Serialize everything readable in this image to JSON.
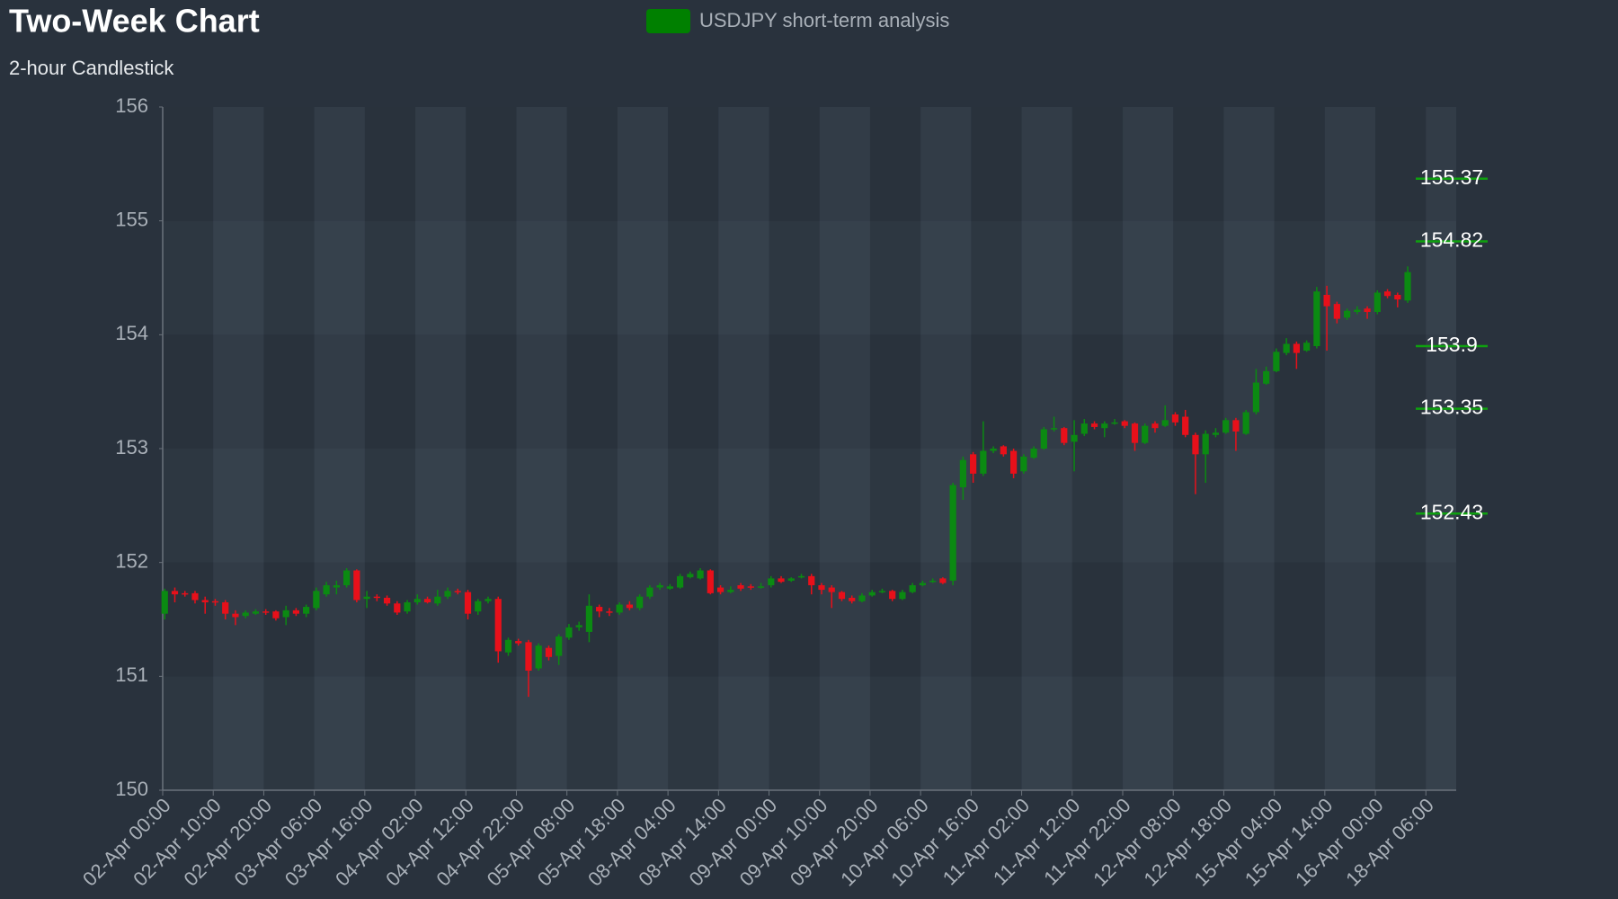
{
  "chart_data": {
    "type": "candlestick",
    "title": "Two-Week Chart",
    "subtitle": "2-hour Candlestick",
    "categories": [
      "02-Apr 00:00",
      null,
      null,
      null,
      null,
      "02-Apr 10:00",
      null,
      null,
      null,
      null,
      "02-Apr 20:00",
      null,
      null,
      null,
      null,
      "03-Apr 06:00",
      null,
      null,
      null,
      null,
      "03-Apr 16:00",
      null,
      null,
      null,
      null,
      "04-Apr 02:00",
      null,
      null,
      null,
      null,
      "04-Apr 12:00",
      null,
      null,
      null,
      null,
      "04-Apr 22:00",
      null,
      null,
      null,
      null,
      "05-Apr 08:00",
      null,
      null,
      null,
      null,
      "05-Apr 18:00",
      null,
      null,
      null,
      null,
      "08-Apr 04:00",
      null,
      null,
      null,
      null,
      "08-Apr 14:00",
      null,
      null,
      null,
      null,
      "09-Apr 00:00",
      null,
      null,
      null,
      null,
      "09-Apr 10:00",
      null,
      null,
      null,
      null,
      "09-Apr 20:00",
      null,
      null,
      null,
      null,
      "10-Apr 06:00",
      null,
      null,
      null,
      null,
      "10-Apr 16:00",
      null,
      null,
      null,
      null,
      "11-Apr 02:00",
      null,
      null,
      null,
      null,
      "11-Apr 12:00",
      null,
      null,
      null,
      null,
      "11-Apr 22:00",
      null,
      null,
      null,
      null,
      "12-Apr 08:00",
      null,
      null,
      null,
      null,
      "12-Apr 18:00",
      null,
      null,
      null,
      null,
      "15-Apr 04:00",
      null,
      null,
      null,
      null,
      "15-Apr 14:00",
      null,
      null,
      null,
      null,
      "16-Apr 00:00",
      null,
      null,
      null,
      null,
      "18-Apr 06:00",
      null,
      null
    ],
    "series": [
      {
        "name": "USDJPY short-term analysis",
        "color": "#008000",
        "up_color": "#0b8a12",
        "down_color": "#e8101a",
        "open": [
          151.55,
          151.75,
          151.73,
          151.73,
          151.67,
          151.66,
          151.65,
          151.55,
          151.53,
          151.55,
          151.57,
          151.57,
          151.52,
          151.58,
          151.55,
          151.6,
          151.72,
          151.78,
          151.8,
          151.93,
          151.68,
          151.7,
          151.69,
          151.64,
          151.57,
          151.65,
          151.68,
          151.64,
          151.7,
          151.75,
          151.74,
          151.57,
          151.66,
          151.68,
          151.21,
          151.31,
          151.3,
          151.07,
          151.25,
          151.18,
          151.34,
          151.43,
          151.39,
          151.61,
          151.57,
          151.56,
          151.63,
          151.6,
          151.7,
          151.78,
          151.77,
          151.78,
          151.87,
          151.86,
          151.93,
          151.78,
          151.74,
          151.8,
          151.79,
          151.78,
          151.8,
          151.86,
          151.84,
          151.87,
          151.88,
          151.8,
          151.78,
          151.74,
          151.69,
          151.66,
          151.71,
          151.74,
          151.75,
          151.68,
          151.74,
          151.8,
          151.83,
          151.86,
          151.84,
          152.66,
          152.95,
          152.78,
          152.98,
          153.02,
          152.98,
          152.8,
          152.92,
          153.0,
          153.17,
          153.18,
          153.06,
          153.13,
          153.22,
          153.18,
          153.22,
          153.24,
          153.22,
          153.05,
          153.22,
          153.2,
          153.3,
          153.28,
          153.12,
          152.95,
          153.12,
          153.14,
          153.25,
          153.13,
          153.32,
          153.57,
          153.68,
          153.84,
          153.92,
          153.86,
          153.9,
          154.35,
          154.27,
          154.15,
          154.2,
          154.23,
          154.2,
          154.38,
          154.35,
          154.3,
          null,
          null,
          null,
          null
        ],
        "high": [
          151.77,
          151.78,
          151.75,
          151.75,
          151.7,
          151.68,
          151.67,
          151.58,
          151.58,
          151.59,
          151.59,
          151.58,
          151.62,
          151.6,
          151.63,
          151.78,
          151.83,
          151.84,
          151.95,
          151.94,
          151.75,
          151.72,
          151.71,
          151.66,
          151.67,
          151.72,
          151.7,
          151.76,
          151.78,
          151.77,
          151.76,
          151.68,
          151.7,
          151.7,
          151.34,
          151.33,
          151.32,
          151.29,
          151.27,
          151.37,
          151.46,
          151.48,
          151.72,
          151.63,
          151.6,
          151.65,
          151.66,
          151.72,
          151.8,
          151.82,
          151.81,
          151.9,
          151.92,
          151.95,
          151.94,
          151.8,
          151.79,
          151.82,
          151.81,
          151.82,
          151.88,
          151.88,
          151.87,
          151.9,
          151.9,
          151.82,
          151.8,
          151.75,
          151.71,
          151.73,
          151.76,
          151.77,
          151.76,
          151.76,
          151.82,
          151.84,
          151.86,
          151.87,
          152.7,
          152.93,
          152.97,
          153.24,
          153.02,
          153.03,
          153.0,
          152.95,
          153.02,
          153.19,
          153.28,
          153.19,
          153.25,
          153.26,
          153.24,
          153.24,
          153.26,
          153.25,
          153.23,
          153.22,
          153.24,
          153.38,
          153.32,
          153.34,
          153.14,
          153.16,
          153.18,
          153.27,
          153.27,
          153.34,
          153.7,
          153.72,
          153.88,
          153.97,
          153.94,
          153.95,
          154.42,
          154.43,
          154.29,
          154.23,
          154.25,
          154.25,
          154.39,
          154.4,
          154.37,
          154.6,
          null,
          null,
          null,
          null
        ],
        "low": [
          151.5,
          151.65,
          151.7,
          151.64,
          151.55,
          151.62,
          151.5,
          151.45,
          151.51,
          151.54,
          151.54,
          151.49,
          151.45,
          151.53,
          151.52,
          151.58,
          151.7,
          151.72,
          151.78,
          151.65,
          151.6,
          151.66,
          151.62,
          151.54,
          151.55,
          151.63,
          151.64,
          151.62,
          151.68,
          151.72,
          151.5,
          151.54,
          151.64,
          151.12,
          151.18,
          151.27,
          150.82,
          151.05,
          151.14,
          151.1,
          151.32,
          151.4,
          151.3,
          151.52,
          151.53,
          151.54,
          151.58,
          151.58,
          151.68,
          151.76,
          151.76,
          151.77,
          151.86,
          151.85,
          151.72,
          151.72,
          151.73,
          151.75,
          151.76,
          151.77,
          151.78,
          151.82,
          151.83,
          151.86,
          151.72,
          151.72,
          151.6,
          151.66,
          151.64,
          151.65,
          151.7,
          151.73,
          151.66,
          151.67,
          151.73,
          151.79,
          151.82,
          151.81,
          151.8,
          152.55,
          152.7,
          152.76,
          152.96,
          152.93,
          152.74,
          152.78,
          152.91,
          152.99,
          153.15,
          153.03,
          152.8,
          153.11,
          153.17,
          153.1,
          153.21,
          153.18,
          152.98,
          153.04,
          153.14,
          153.19,
          153.2,
          153.1,
          152.6,
          152.7,
          153.1,
          153.13,
          152.98,
          153.12,
          153.3,
          153.56,
          153.67,
          153.82,
          153.7,
          153.85,
          153.88,
          153.86,
          154.1,
          154.13,
          154.18,
          154.14,
          154.18,
          154.32,
          154.24,
          154.28,
          null,
          null,
          null,
          null
        ],
        "close": [
          151.75,
          151.72,
          151.72,
          151.67,
          151.65,
          151.65,
          151.55,
          151.52,
          151.56,
          151.57,
          151.56,
          151.51,
          151.58,
          151.55,
          151.61,
          151.75,
          151.8,
          151.8,
          151.93,
          151.67,
          151.7,
          151.69,
          151.64,
          151.56,
          151.65,
          151.68,
          151.65,
          151.7,
          151.75,
          151.74,
          151.55,
          151.66,
          151.68,
          151.22,
          151.32,
          151.29,
          151.05,
          151.27,
          151.17,
          151.35,
          151.43,
          151.45,
          151.62,
          151.57,
          151.56,
          151.63,
          151.6,
          151.7,
          151.78,
          151.8,
          151.79,
          151.88,
          151.9,
          151.93,
          151.73,
          151.74,
          151.76,
          151.77,
          151.78,
          151.79,
          151.86,
          151.83,
          151.86,
          151.88,
          151.8,
          151.76,
          151.74,
          151.68,
          151.66,
          151.71,
          151.74,
          151.75,
          151.68,
          151.74,
          151.8,
          151.82,
          151.84,
          151.82,
          152.68,
          152.9,
          152.78,
          152.98,
          153.0,
          152.95,
          152.78,
          152.93,
          153.0,
          153.17,
          153.18,
          153.05,
          153.12,
          153.22,
          153.19,
          153.22,
          153.23,
          153.2,
          153.05,
          153.2,
          153.18,
          153.25,
          153.23,
          153.12,
          152.95,
          153.13,
          153.14,
          153.25,
          153.15,
          153.32,
          153.58,
          153.68,
          153.85,
          153.92,
          153.84,
          153.93,
          154.38,
          154.25,
          154.14,
          154.21,
          154.22,
          154.2,
          154.37,
          154.34,
          154.31,
          154.55,
          null,
          null,
          null,
          null
        ]
      }
    ],
    "levels": [
      155.37,
      154.82,
      153.9,
      153.35,
      152.43
    ],
    "level_color": "#0fa00f",
    "ylim": [
      150,
      156
    ],
    "yticks": [
      150,
      151,
      152,
      153,
      154,
      155,
      156
    ]
  }
}
